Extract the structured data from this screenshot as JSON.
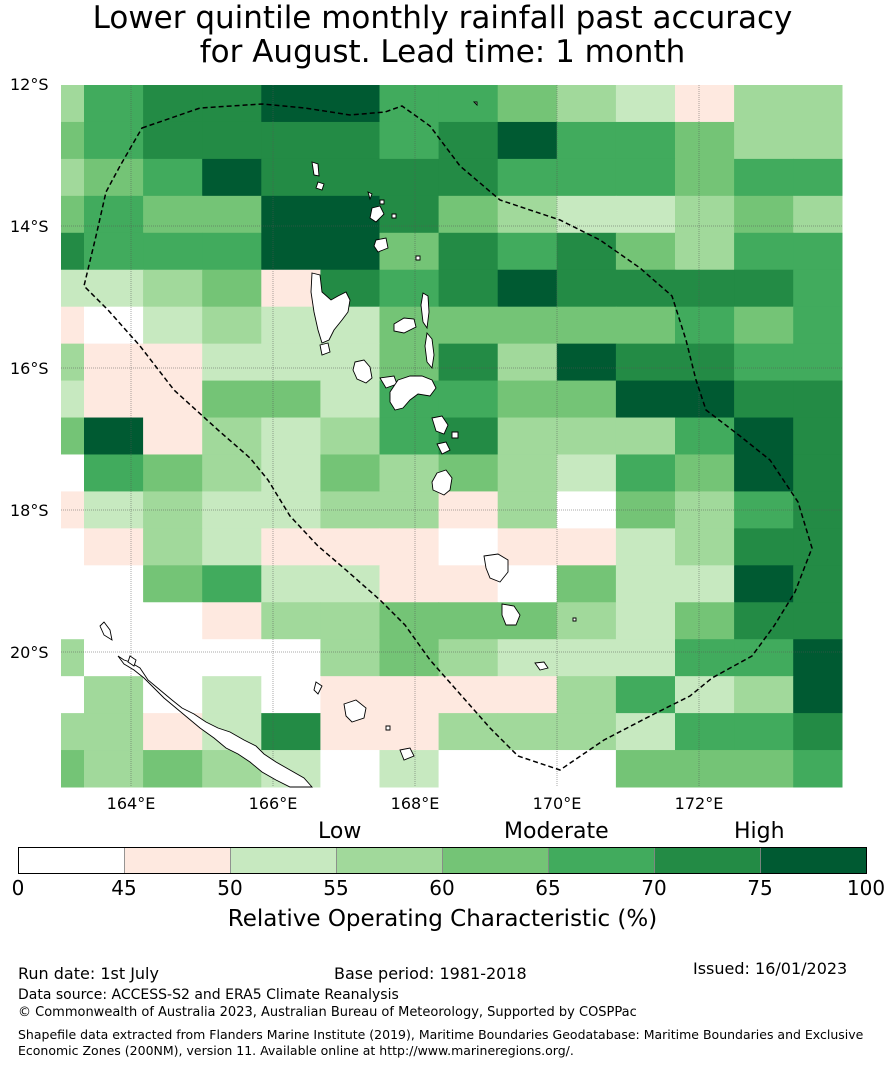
{
  "title_line1": "Lower quintile monthly rainfall past accuracy",
  "title_line2": "for August. Lead time: 1 month",
  "lat_labels": [
    "12°S",
    "14°S",
    "16°S",
    "18°S",
    "20°S"
  ],
  "lon_labels": [
    "164°E",
    "166°E",
    "168°E",
    "170°E",
    "172°E"
  ],
  "category_labels": {
    "low": "Low",
    "moderate": "Moderate",
    "high": "High"
  },
  "colorbar": {
    "ticks": [
      "0",
      "45",
      "50",
      "55",
      "60",
      "65",
      "70",
      "75",
      "100"
    ],
    "colors": [
      "#ffffff",
      "#fee9e0",
      "#c7e9c0",
      "#a1d99b",
      "#74c476",
      "#41ab5d",
      "#238b45",
      "#005a32"
    ],
    "title": "Relative Operating Characteristic (%)"
  },
  "map": {
    "lon_range": [
      163.0,
      174.0
    ],
    "lat_range": [
      -21.78,
      -12.0
    ],
    "grid_rows": [
      [
        3,
        5,
        6,
        6,
        7,
        7,
        5,
        5,
        4,
        3,
        2,
        1,
        3
      ],
      [
        4,
        5,
        6,
        6,
        6,
        6,
        5,
        6,
        7,
        5,
        5,
        4,
        3
      ],
      [
        3,
        4,
        5,
        7,
        6,
        6,
        6,
        6,
        5,
        5,
        5,
        4,
        5,
        5
      ],
      [
        4,
        5,
        4,
        4,
        7,
        7,
        6,
        4,
        3,
        2,
        2,
        3,
        4,
        3
      ],
      [
        6,
        5,
        5,
        5,
        7,
        7,
        4,
        6,
        5,
        6,
        4,
        3,
        5,
        5
      ],
      [
        2,
        2,
        3,
        4,
        1,
        6,
        5,
        6,
        7,
        6,
        6,
        6,
        6,
        5
      ],
      [
        1,
        0,
        2,
        3,
        2,
        2,
        4,
        4,
        4,
        4,
        4,
        5,
        4,
        5
      ],
      [
        3,
        1,
        1,
        2,
        2,
        2,
        4,
        6,
        3,
        7,
        6,
        6,
        5,
        5
      ],
      [
        2,
        1,
        1,
        4,
        4,
        2,
        5,
        5,
        4,
        4,
        7,
        7,
        6,
        6
      ],
      [
        4,
        7,
        1,
        3,
        2,
        3,
        5,
        6,
        3,
        3,
        3,
        5,
        7,
        6
      ],
      [
        0,
        5,
        4,
        3,
        2,
        4,
        3,
        4,
        3,
        2,
        5,
        4,
        7,
        6
      ],
      [
        1,
        2,
        3,
        2,
        2,
        3,
        3,
        1,
        3,
        0,
        4,
        3,
        5,
        6
      ],
      [
        0,
        1,
        3,
        2,
        1,
        1,
        1,
        0,
        1,
        1,
        2,
        3,
        6,
        6
      ],
      [
        0,
        0,
        4,
        5,
        2,
        2,
        1,
        1,
        0,
        4,
        2,
        2,
        7,
        6
      ],
      [
        0,
        0,
        0,
        1,
        3,
        3,
        4,
        4,
        4,
        3,
        2,
        4,
        6,
        6
      ],
      [
        3,
        0,
        0,
        0,
        0,
        3,
        4,
        3,
        2,
        2,
        2,
        5,
        5,
        7
      ],
      [
        0,
        3,
        0,
        2,
        0,
        1,
        1,
        1,
        1,
        3,
        5,
        2,
        3,
        7
      ],
      [
        3,
        3,
        1,
        2,
        6,
        1,
        1,
        3,
        3,
        3,
        2,
        5,
        5,
        6
      ],
      [
        4,
        3,
        4,
        3,
        2,
        0,
        2,
        0,
        0,
        0,
        4,
        4,
        4,
        5
      ]
    ],
    "sub_rows": [
      1
    ],
    "islands": [
      "Vanuatu",
      "Espiritu Santo",
      "Malekula",
      "Efate",
      "Erromango",
      "Tanna",
      "New Caledonia",
      "Loyalty Islands"
    ]
  },
  "run_date": "Run date: 1st July",
  "base_period": "Base period: 1981-2018",
  "issued": "Issued: 16/01/2023",
  "data_source": "Data source: ACCESS-S2 and ERA5 Climate Reanalysis",
  "copyright": "© Commonwealth of Australia 2023, Australian Bureau of Meteorology, Supported by COSPPac",
  "shapefile_line1": "Shapefile data extracted from Flanders Marine Institute (2019), Maritime Boundaries Geodatabase: Maritime Boundaries and Exclusive",
  "shapefile_line2": "Economic Zones (200NM), version 11. Available online at http://www.marineregions.org/."
}
